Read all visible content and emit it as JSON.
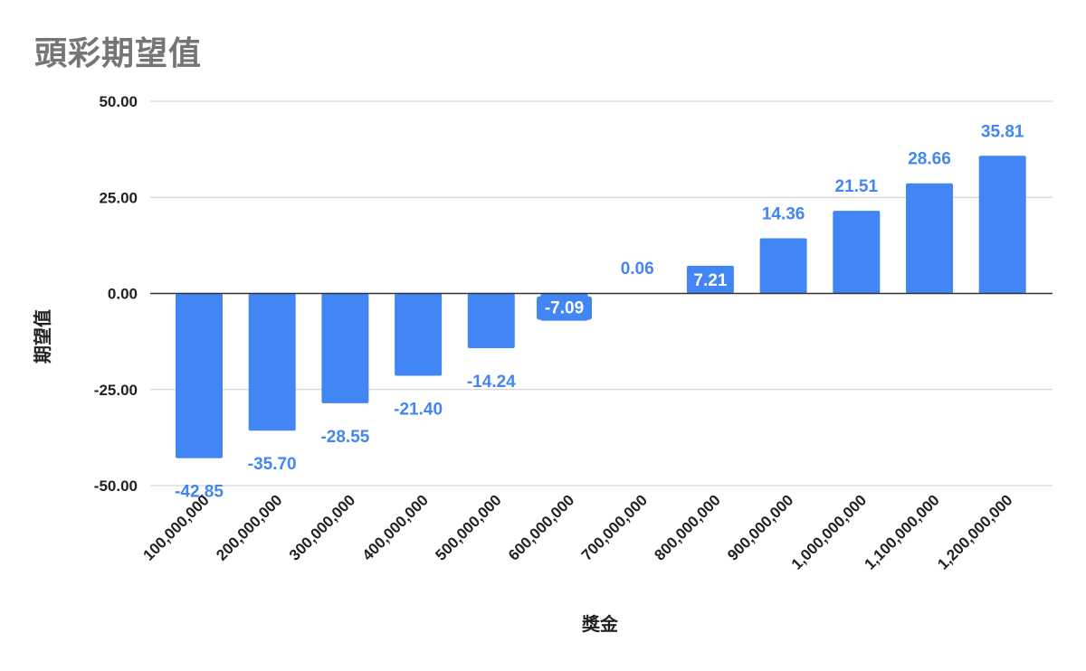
{
  "chart_data": {
    "type": "bar",
    "title": "頭彩期望值",
    "xlabel": "獎金",
    "ylabel": "期望值",
    "categories": [
      "100,000,000",
      "200,000,000",
      "300,000,000",
      "400,000,000",
      "500,000,000",
      "600,000,000",
      "700,000,000",
      "800,000,000",
      "900,000,000",
      "1,000,000,000",
      "1,100,000,000",
      "1,200,000,000"
    ],
    "values": [
      -42.85,
      -35.7,
      -28.55,
      -21.4,
      -14.24,
      -7.09,
      0.06,
      7.21,
      14.36,
      21.51,
      28.66,
      35.81
    ],
    "data_labels": [
      "-42.85",
      "-35.70",
      "-28.55",
      "-21.40",
      "-14.24",
      "-7.09",
      "0.06",
      "7.21",
      "14.36",
      "21.51",
      "28.66",
      "35.81"
    ],
    "y_ticks": [
      50,
      25,
      0,
      -25,
      -50
    ],
    "y_tick_labels": [
      "50.00",
      "25.00",
      "0.00",
      "-25.00",
      "-50.00"
    ],
    "ylim": [
      -50,
      50
    ],
    "grid": true,
    "legend": "none",
    "colors": {
      "bar": "#4285f4",
      "grid": "#cccccc",
      "zero_line": "#333333",
      "title": "#757575"
    }
  }
}
